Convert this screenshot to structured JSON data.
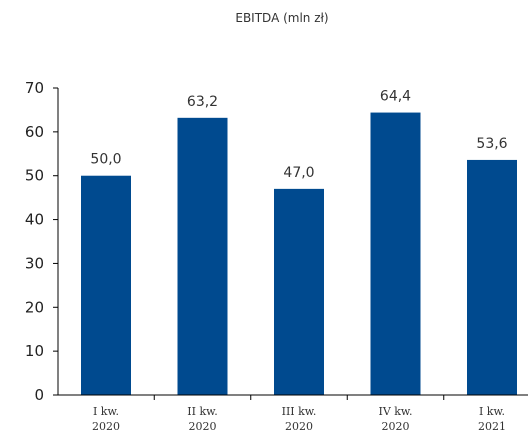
{
  "chart_data": {
    "type": "bar",
    "title": "EBITDA (mln zł)",
    "categories": [
      [
        "I kw.",
        "2020"
      ],
      [
        "II kw.",
        "2020"
      ],
      [
        "III kw.",
        "2020"
      ],
      [
        "IV kw.",
        "2020"
      ],
      [
        "I kw.",
        "2021"
      ]
    ],
    "values": [
      50.0,
      63.2,
      47.0,
      64.4,
      53.6
    ],
    "value_labels": [
      "50,0",
      "63,2",
      "47,0",
      "64,4",
      "53,6"
    ],
    "ylim": [
      0,
      70
    ],
    "yticks": [
      "0",
      "10",
      "20",
      "30",
      "40",
      "50",
      "60",
      "70"
    ],
    "grid": false,
    "bar_color": "#004a8f",
    "axis_color": "#000000"
  }
}
